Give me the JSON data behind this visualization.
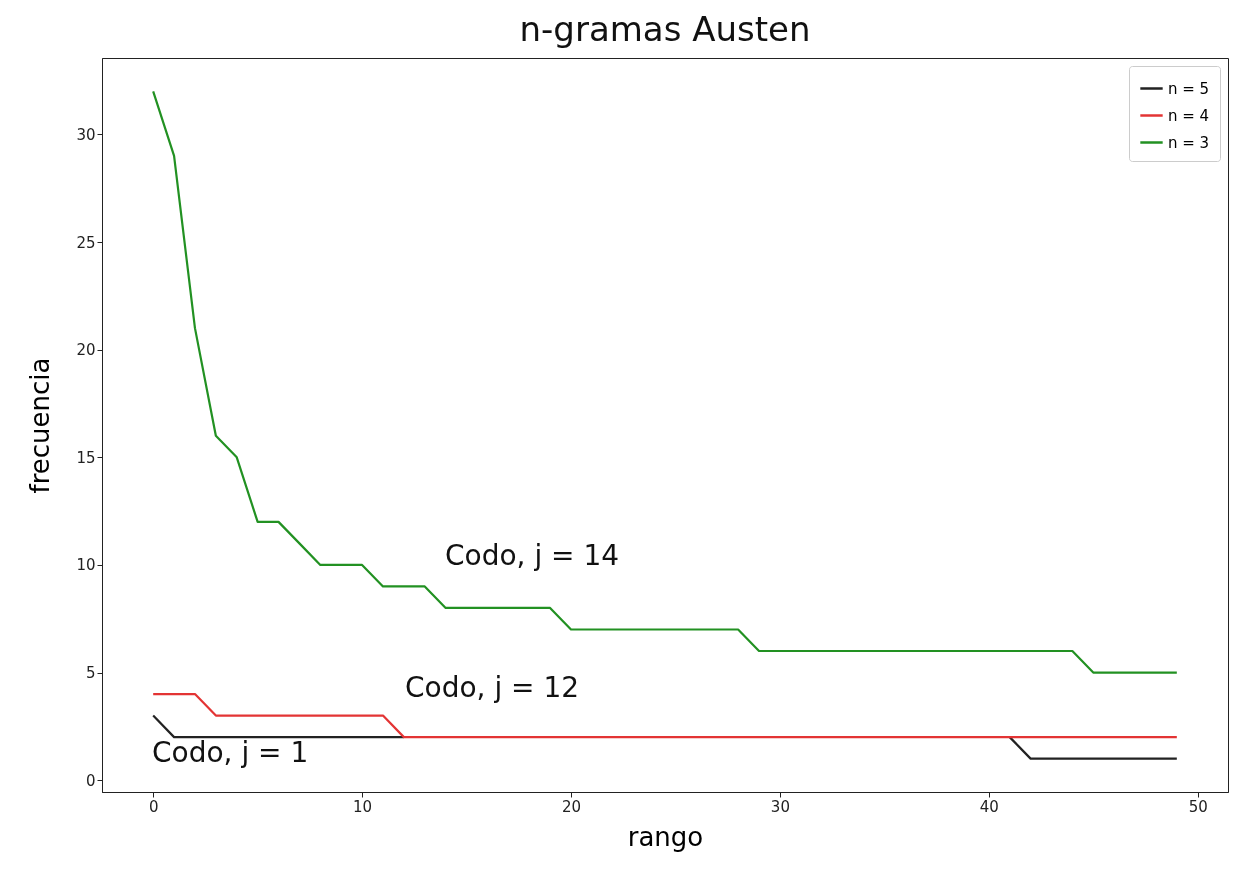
{
  "chart_data": {
    "type": "line",
    "title": "n-gramas Austen",
    "xlabel": "rango",
    "ylabel": "frecuencia",
    "x": [
      0,
      1,
      2,
      3,
      4,
      5,
      6,
      7,
      8,
      9,
      10,
      11,
      12,
      13,
      14,
      15,
      16,
      17,
      18,
      19,
      20,
      21,
      22,
      23,
      24,
      25,
      26,
      27,
      28,
      29,
      30,
      31,
      32,
      33,
      34,
      35,
      36,
      37,
      38,
      39,
      40,
      41,
      42,
      43,
      44,
      45,
      46,
      47,
      48,
      49
    ],
    "series": [
      {
        "name": "n = 5",
        "color": "#222222",
        "values": [
          3,
          2,
          2,
          2,
          2,
          2,
          2,
          2,
          2,
          2,
          2,
          2,
          2,
          null,
          null,
          null,
          null,
          null,
          null,
          null,
          null,
          null,
          null,
          null,
          null,
          null,
          null,
          null,
          null,
          null,
          null,
          null,
          null,
          null,
          null,
          null,
          null,
          null,
          null,
          null,
          null,
          2,
          1,
          1,
          1,
          1,
          1,
          1,
          1,
          1
        ]
      },
      {
        "name": "n = 4",
        "color": "#e33434",
        "values": [
          4,
          4,
          4,
          3,
          3,
          3,
          3,
          3,
          3,
          3,
          3,
          3,
          2,
          2,
          2,
          2,
          2,
          2,
          2,
          2,
          2,
          2,
          2,
          2,
          2,
          2,
          2,
          2,
          2,
          2,
          2,
          2,
          2,
          2,
          2,
          2,
          2,
          2,
          2,
          2,
          2,
          2,
          2,
          2,
          2,
          2,
          2,
          2,
          2,
          2
        ]
      },
      {
        "name": "n = 3",
        "color": "#229122",
        "values": [
          32,
          29,
          21,
          16,
          15,
          12,
          12,
          11,
          10,
          10,
          10,
          9,
          9,
          9,
          8,
          8,
          8,
          8,
          8,
          8,
          7,
          7,
          7,
          7,
          7,
          7,
          7,
          7,
          7,
          6,
          6,
          6,
          6,
          6,
          6,
          6,
          6,
          6,
          6,
          6,
          6,
          6,
          6,
          6,
          6,
          5,
          5,
          5,
          5,
          5
        ]
      }
    ],
    "annotations": [
      "Codo, j = 14",
      "Codo, j = 12",
      "Codo, j = 1"
    ],
    "xlim": [
      -2.45,
      51.45
    ],
    "xticks": [
      0,
      10,
      20,
      30,
      40,
      50
    ],
    "ylim": [
      -0.55,
      33.55
    ],
    "yticks": [
      0,
      5,
      10,
      15,
      20,
      25,
      30
    ],
    "legend": "top right",
    "grid": false,
    "marker": "none",
    "line_style": "solid"
  }
}
